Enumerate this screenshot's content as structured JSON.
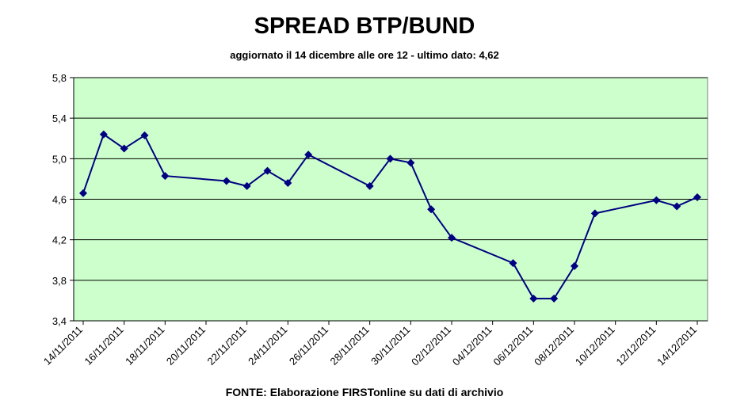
{
  "chart_data": {
    "type": "line",
    "title": "SPREAD BTP/BUND",
    "subtitle": "aggiornato il 14 dicembre alle ore 12 - ultimo dato: 4,62",
    "source": "FONTE: Elaborazione FIRSTonline su dati di archivio",
    "x": [
      "14/11/2011",
      "15/11/2011",
      "16/11/2011",
      "17/11/2011",
      "18/11/2011",
      "21/11/2011",
      "22/11/2011",
      "23/11/2011",
      "24/11/2011",
      "25/11/2011",
      "28/11/2011",
      "29/11/2011",
      "30/11/2011",
      "01/12/2011",
      "02/12/2011",
      "05/12/2011",
      "06/12/2011",
      "07/12/2011",
      "08/12/2011",
      "09/12/2011",
      "12/12/2011",
      "13/12/2011",
      "14/12/2011"
    ],
    "series": [
      {
        "color": "#000080",
        "values": [
          4.66,
          5.24,
          5.1,
          5.23,
          4.83,
          4.78,
          4.73,
          4.88,
          4.76,
          5.04,
          4.73,
          5.0,
          4.96,
          4.5,
          4.22,
          3.97,
          3.62,
          3.62,
          3.94,
          4.46,
          4.59,
          4.53,
          4.62
        ]
      }
    ],
    "xlim": [
      "14/11/2011",
      "14/12/2011"
    ],
    "xticks": [
      "14/11/2011",
      "16/11/2011",
      "18/11/2011",
      "20/11/2011",
      "22/11/2011",
      "24/11/2011",
      "26/11/2011",
      "28/11/2011",
      "30/11/2011",
      "02/12/2011",
      "04/12/2011",
      "06/12/2011",
      "08/12/2011",
      "10/12/2011",
      "12/12/2011",
      "14/12/2011"
    ],
    "ylim": [
      3.4,
      5.8
    ],
    "yticks": [
      {
        "value": 3.4,
        "label": "3,4"
      },
      {
        "value": 3.8,
        "label": "3,8"
      },
      {
        "value": 4.2,
        "label": "4,2"
      },
      {
        "value": 4.6,
        "label": "4,6"
      },
      {
        "value": 5.0,
        "label": "5,0"
      },
      {
        "value": 5.4,
        "label": "5,4"
      },
      {
        "value": 5.8,
        "label": "5,8"
      }
    ],
    "grid": true,
    "plot_background": "#ccffcc"
  }
}
